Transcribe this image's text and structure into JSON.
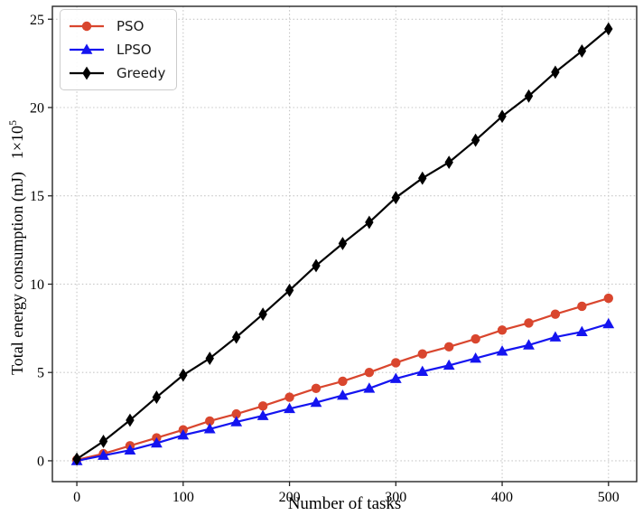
{
  "chart_data": {
    "type": "line",
    "title": "",
    "xlabel": "Number of tasks",
    "ylabel": "Total energy consumption (mJ)",
    "ylabel_scale_base": "1×10",
    "ylabel_scale_exponent": "5",
    "grid": true,
    "legend_position": "upper-left",
    "xlim": [
      -23,
      526.5
    ],
    "ylim": [
      -1.18,
      25.73
    ],
    "xticks": [
      0,
      100,
      200,
      300,
      400,
      500
    ],
    "yticks": [
      0,
      5,
      10,
      15,
      20,
      25
    ],
    "x": [
      0,
      25,
      50,
      75,
      100,
      125,
      150,
      175,
      200,
      225,
      250,
      275,
      300,
      325,
      350,
      375,
      400,
      425,
      450,
      475,
      500
    ],
    "series": [
      {
        "name": "PSO",
        "color": "#d9462e",
        "marker": "circle",
        "values": [
          0.05,
          0.4,
          0.85,
          1.3,
          1.75,
          2.25,
          2.65,
          3.1,
          3.6,
          4.1,
          4.5,
          5.0,
          5.55,
          6.05,
          6.45,
          6.9,
          7.4,
          7.8,
          8.3,
          8.75,
          9.2
        ]
      },
      {
        "name": "LPSO",
        "color": "#1414f0",
        "marker": "triangle",
        "values": [
          0.0,
          0.3,
          0.6,
          1.0,
          1.45,
          1.8,
          2.2,
          2.55,
          2.95,
          3.3,
          3.7,
          4.1,
          4.65,
          5.05,
          5.4,
          5.8,
          6.2,
          6.55,
          7.0,
          7.3,
          7.75
        ]
      },
      {
        "name": "Greedy",
        "color": "#000000",
        "marker": "thin-diamond",
        "values": [
          0.1,
          1.1,
          2.3,
          3.6,
          4.85,
          5.8,
          7.0,
          8.3,
          9.65,
          11.05,
          12.3,
          13.5,
          14.9,
          16.0,
          16.9,
          18.15,
          19.5,
          20.65,
          22.0,
          23.2,
          24.45
        ]
      }
    ]
  }
}
